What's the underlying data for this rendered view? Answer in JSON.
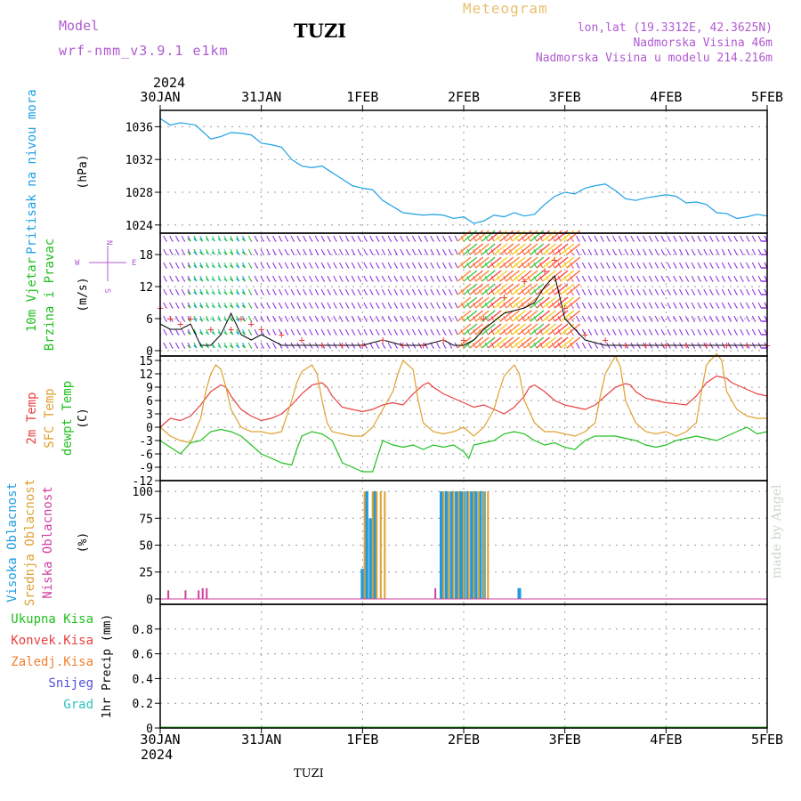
{
  "header": {
    "model_label": "Model",
    "model_name": "wrf-nmm_v3.9.1 e1km",
    "station": "TUZI",
    "meteogram_label": "Meteogram",
    "lonlat": "lon,lat (19.3312E, 42.3625N)",
    "elevation": "Nadmorska Visina 46m",
    "elevation_model": "Nadmorska Visina u modelu 214.216m",
    "year": "2024",
    "station_bottom": "TUZI",
    "credit": "made by Angel"
  },
  "colors": {
    "pressure": "#1ea0e6",
    "temp2m": "#e84040",
    "sfc_temp": "#e0a030",
    "dewpt": "#20c020",
    "high_cloud": "#1e9be0",
    "mid_cloud": "#e0a030",
    "low_cloud": "#d040a0",
    "label_purple": "#b05ad0"
  },
  "chart_data": {
    "type": "line",
    "x_axis": {
      "ticks": [
        "30JAN",
        "31JAN",
        "1FEB",
        "2FEB",
        "3FEB",
        "4FEB",
        "5FEB"
      ],
      "range_days": [
        0,
        6
      ]
    },
    "panels": [
      {
        "id": "pressure",
        "labels": [
          "Pritisak na nivou mora"
        ],
        "unit": "(hPa)",
        "ylim": [
          1023,
          1038
        ],
        "yticks": [
          1024,
          1028,
          1032,
          1036
        ],
        "series": [
          {
            "name": "Pritisak na nivou mora",
            "x": [
              0,
              0.1,
              0.2,
              0.35,
              0.5,
              0.6,
              0.7,
              0.8,
              0.9,
              1.0,
              1.1,
              1.2,
              1.3,
              1.4,
              1.5,
              1.6,
              1.75,
              1.9,
              2.0,
              2.1,
              2.2,
              2.4,
              2.6,
              2.7,
              2.8,
              2.9,
              3.0,
              3.1,
              3.2,
              3.3,
              3.4,
              3.5,
              3.6,
              3.7,
              3.8,
              3.9,
              4.0,
              4.1,
              4.2,
              4.3,
              4.4,
              4.5,
              4.6,
              4.7,
              4.8,
              4.9,
              5.0,
              5.1,
              5.2,
              5.3,
              5.4,
              5.5,
              5.6,
              5.7,
              5.8,
              5.9,
              6.0
            ],
            "y": [
              1037,
              1036.2,
              1036.5,
              1036.2,
              1034.5,
              1034.8,
              1035.3,
              1035.2,
              1035,
              1034,
              1033.8,
              1033.5,
              1032,
              1031.2,
              1031,
              1031.2,
              1030,
              1028.8,
              1028.5,
              1028.3,
              1027,
              1025.5,
              1025.2,
              1025.3,
              1025.2,
              1024.8,
              1025,
              1024.2,
              1024.5,
              1025.2,
              1025,
              1025.5,
              1025.1,
              1025.3,
              1026.5,
              1027.5,
              1028,
              1027.8,
              1028.5,
              1028.8,
              1029,
              1028.2,
              1027.2,
              1027,
              1027.3,
              1027.5,
              1027.7,
              1027.5,
              1026.7,
              1026.8,
              1026.5,
              1025.5,
              1025.4,
              1024.8,
              1025,
              1025.3,
              1025.1
            ]
          }
        ]
      },
      {
        "id": "wind",
        "labels": [
          "10m Vjetar",
          "Brzina i Pravac"
        ],
        "unit": "(m/s)",
        "compass": [
          "W",
          "E",
          "N",
          "S"
        ],
        "ylim": [
          -1,
          22
        ],
        "yticks": [
          0,
          6,
          12,
          18
        ],
        "series": [
          {
            "name": "Brzina",
            "x": [
              0,
              0.1,
              0.2,
              0.3,
              0.4,
              0.5,
              0.6,
              0.7,
              0.8,
              0.9,
              1.0,
              1.2,
              1.4,
              1.6,
              1.8,
              2.0,
              2.2,
              2.4,
              2.6,
              2.8,
              2.9,
              3.0,
              3.1,
              3.2,
              3.4,
              3.6,
              3.7,
              3.8,
              3.9,
              4.0,
              4.2,
              4.4,
              4.6,
              4.8,
              5.0,
              5.2,
              5.4,
              5.6,
              5.8,
              6.0
            ],
            "y": [
              5,
              4,
              4,
              5,
              1,
              1,
              3,
              7,
              3,
              2,
              3,
              1,
              1,
              1,
              1,
              1,
              2,
              1,
              1,
              2,
              1,
              1,
              2,
              4,
              7,
              8,
              9,
              12,
              14,
              6,
              2,
              1,
              1,
              1,
              1,
              1,
              1,
              1,
              1,
              1
            ]
          },
          {
            "name": "Udari",
            "x": [
              0,
              0.1,
              0.2,
              0.3,
              0.5,
              0.7,
              0.8,
              0.9,
              1.0,
              1.2,
              1.4,
              1.6,
              1.8,
              2.0,
              2.2,
              2.4,
              2.6,
              2.8,
              3.0,
              3.2,
              3.4,
              3.6,
              3.8,
              3.9,
              4.0,
              4.2,
              4.4,
              4.6,
              4.8,
              5.0,
              5.2,
              5.4,
              5.6,
              5.8,
              6.0
            ],
            "y": [
              8,
              6,
              5,
              6,
              4,
              4,
              6,
              5,
              4,
              3,
              2,
              1,
              1,
              1,
              2,
              1,
              1,
              2,
              2,
              6,
              10,
              13,
              15,
              17,
              8,
              3,
              2,
              1,
              1,
              1,
              1,
              1,
              1,
              1,
              1
            ]
          }
        ]
      },
      {
        "id": "temperature",
        "labels": [
          "2m Temp",
          "SFC Temp",
          "dewpt Temp"
        ],
        "unit": "(C)",
        "ylim": [
          -12,
          16
        ],
        "yticks": [
          -12,
          -9,
          -6,
          -3,
          0,
          3,
          6,
          9,
          12,
          15
        ],
        "series": [
          {
            "name": "2m Temp",
            "x": [
              0,
              0.1,
              0.2,
              0.3,
              0.4,
              0.5,
              0.6,
              0.65,
              0.7,
              0.8,
              0.9,
              1.0,
              1.1,
              1.2,
              1.3,
              1.4,
              1.5,
              1.6,
              1.65,
              1.7,
              1.8,
              1.9,
              2.0,
              2.1,
              2.2,
              2.3,
              2.4,
              2.5,
              2.6,
              2.65,
              2.7,
              2.8,
              2.9,
              3.0,
              3.1,
              3.2,
              3.3,
              3.4,
              3.5,
              3.6,
              3.65,
              3.7,
              3.8,
              3.9,
              4.0,
              4.1,
              4.2,
              4.3,
              4.4,
              4.5,
              4.6,
              4.65,
              4.7,
              4.8,
              4.9,
              5.0,
              5.1,
              5.2,
              5.3,
              5.4,
              5.5,
              5.6,
              5.65,
              5.7,
              5.8,
              5.9,
              6.0
            ],
            "y": [
              0,
              2,
              1.5,
              2.5,
              5,
              8,
              9.5,
              9,
              7,
              4,
              2.5,
              1.5,
              2,
              3,
              5,
              7.5,
              9.5,
              10,
              9,
              7,
              4.5,
              4,
              3.5,
              4,
              5,
              5.5,
              5,
              7.5,
              9.5,
              10,
              9,
              7.5,
              6.5,
              5.5,
              4.5,
              5,
              4,
              3,
              4.5,
              7,
              9,
              9.5,
              8,
              6,
              5,
              4.5,
              4,
              5,
              7,
              9,
              9.8,
              9.5,
              8,
              6.5,
              6,
              5.5,
              5.3,
              5,
              7,
              10,
              11.5,
              11,
              10,
              9.5,
              8.5,
              7.5,
              7
            ]
          },
          {
            "name": "SFC Temp",
            "x": [
              0,
              0.1,
              0.2,
              0.3,
              0.4,
              0.45,
              0.5,
              0.55,
              0.6,
              0.65,
              0.7,
              0.8,
              0.9,
              1.0,
              1.1,
              1.2,
              1.3,
              1.35,
              1.4,
              1.5,
              1.55,
              1.6,
              1.65,
              1.7,
              1.8,
              1.9,
              2.0,
              2.1,
              2.2,
              2.3,
              2.35,
              2.4,
              2.5,
              2.55,
              2.6,
              2.7,
              2.8,
              2.9,
              3.0,
              3.1,
              3.2,
              3.3,
              3.35,
              3.4,
              3.5,
              3.55,
              3.6,
              3.7,
              3.8,
              3.9,
              4.0,
              4.1,
              4.2,
              4.3,
              4.35,
              4.4,
              4.5,
              4.55,
              4.6,
              4.7,
              4.8,
              4.9,
              5.0,
              5.1,
              5.2,
              5.3,
              5.35,
              5.4,
              5.5,
              5.55,
              5.6,
              5.7,
              5.8,
              5.9,
              6.0
            ],
            "y": [
              0,
              -2,
              -3,
              -3.5,
              2,
              8,
              12,
              14,
              13,
              9,
              4,
              0,
              -1,
              -1,
              -1.5,
              -1,
              6,
              10,
              12.5,
              14,
              12,
              6,
              1,
              -1,
              -1.5,
              -2,
              -2,
              0,
              4,
              8,
              12,
              15,
              13,
              6,
              1,
              -1,
              -1.5,
              -1,
              0,
              -2,
              0,
              4,
              8,
              11.5,
              14,
              12,
              6,
              1,
              -1,
              -1,
              -1.5,
              -2,
              -1,
              1,
              7,
              12,
              16,
              13.5,
              6,
              1,
              -1,
              -1.5,
              -1,
              -2,
              -1,
              1,
              8,
              14,
              16.5,
              15,
              8,
              4,
              2.5,
              2,
              2
            ]
          },
          {
            "name": "dewpt Temp",
            "x": [
              0,
              0.1,
              0.2,
              0.3,
              0.4,
              0.5,
              0.6,
              0.7,
              0.8,
              0.9,
              1.0,
              1.1,
              1.2,
              1.3,
              1.35,
              1.4,
              1.5,
              1.6,
              1.7,
              1.8,
              1.9,
              2.0,
              2.1,
              2.2,
              2.3,
              2.4,
              2.5,
              2.6,
              2.7,
              2.8,
              2.9,
              3.0,
              3.05,
              3.1,
              3.2,
              3.3,
              3.4,
              3.5,
              3.6,
              3.7,
              3.8,
              3.9,
              4.0,
              4.1,
              4.2,
              4.3,
              4.4,
              4.5,
              4.6,
              4.7,
              4.8,
              4.9,
              5.0,
              5.1,
              5.2,
              5.3,
              5.4,
              5.5,
              5.6,
              5.7,
              5.8,
              5.9,
              6.0
            ],
            "y": [
              -3,
              -4.5,
              -6,
              -3.5,
              -3,
              -1,
              -0.5,
              -1,
              -2,
              -4,
              -6,
              -7,
              -8,
              -8.5,
              -5,
              -2,
              -1,
              -1.5,
              -3,
              -8,
              -9,
              -10,
              -10,
              -3,
              -4,
              -4.5,
              -4,
              -5,
              -4,
              -4.5,
              -4,
              -5.5,
              -7,
              -4,
              -3.5,
              -3,
              -1.5,
              -1,
              -1.5,
              -3,
              -4,
              -3.5,
              -4.5,
              -5,
              -3,
              -2,
              -2,
              -2,
              -2.5,
              -3,
              -4,
              -4.5,
              -4,
              -3,
              -2.5,
              -2,
              -2.5,
              -3,
              -2,
              -1,
              0,
              -1.5,
              -1
            ]
          }
        ]
      },
      {
        "id": "cloud",
        "labels": [
          "Visoka Oblacnost",
          "Srednja Oblacnost",
          "Niska Oblacnost"
        ],
        "unit": "(%)",
        "ylim": [
          -5,
          110
        ],
        "yticks": [
          0,
          25,
          50,
          75,
          100
        ],
        "series": [
          {
            "name": "Visoka Oblacnost",
            "x": [
              2.0,
              2.04,
              2.08,
              2.12,
              2.78,
              2.83,
              2.88,
              2.93,
              2.97,
              3.0,
              3.04,
              3.08,
              3.12,
              3.16,
              3.2,
              3.55
            ],
            "y": [
              28,
              100,
              75,
              100,
              100,
              100,
              100,
              100,
              100,
              100,
              100,
              100,
              100,
              100,
              100,
              10
            ]
          },
          {
            "name": "Srednja Oblacnost",
            "x": [
              2.02,
              2.1,
              2.14,
              2.18,
              2.22,
              2.8,
              2.85,
              2.9,
              2.95,
              3.0,
              3.05,
              3.1,
              3.15,
              3.2,
              3.24
            ],
            "y": [
              100,
              100,
              100,
              100,
              100,
              100,
              100,
              100,
              100,
              100,
              100,
              100,
              100,
              100,
              100
            ]
          },
          {
            "name": "Niska Oblacnost",
            "x": [
              0.08,
              0.25,
              0.38,
              0.42,
              0.46,
              2.72
            ],
            "y": [
              8,
              8,
              8,
              10,
              10,
              10
            ]
          }
        ]
      },
      {
        "id": "precip",
        "labels": [
          "Ukupna Kisa",
          "Konvek.Kisa",
          "Zaledj.Kisa",
          "Snijeg",
          "Grad"
        ],
        "unit": "1hr Precip (mm)",
        "ylim": [
          0,
          1
        ],
        "yticks": [
          0,
          0.2,
          0.4,
          0.6,
          0.8
        ],
        "series": [
          {
            "name": "Ukupna Kisa",
            "x": [
              0,
              6
            ],
            "y": [
              0,
              0
            ]
          }
        ]
      }
    ]
  }
}
